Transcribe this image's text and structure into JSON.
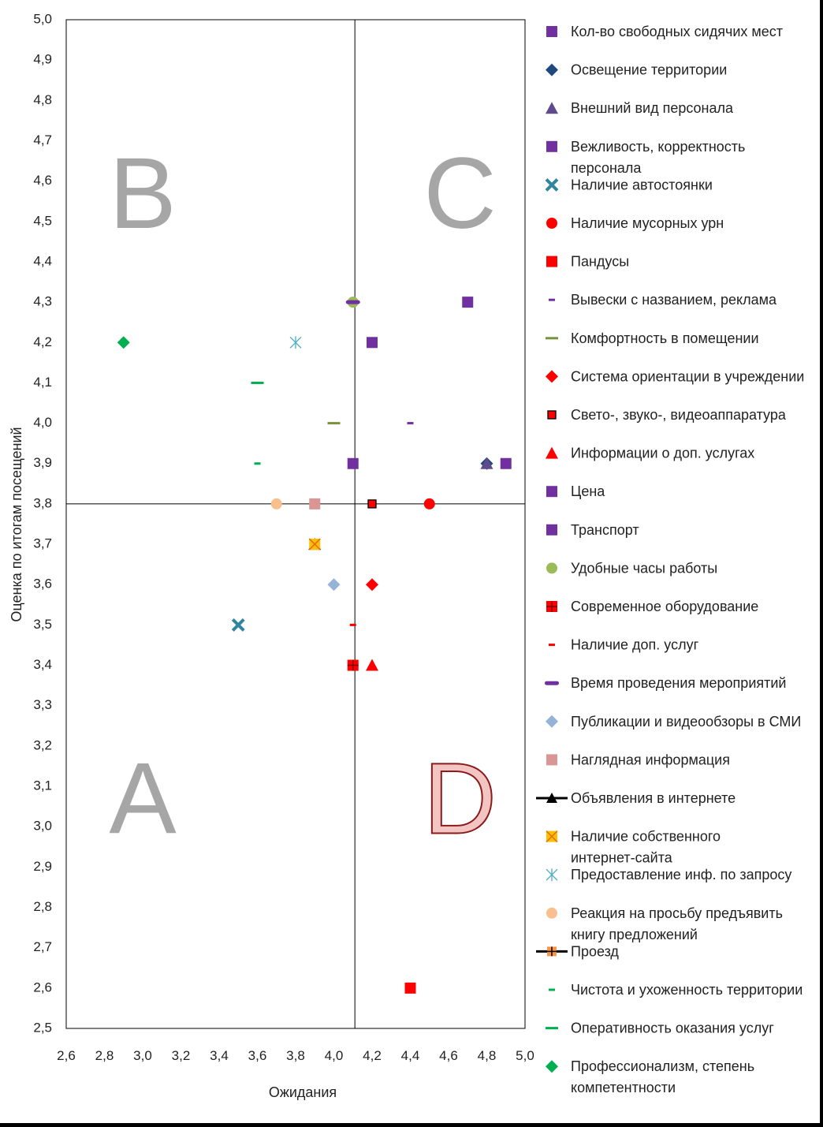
{
  "chart_data": {
    "type": "scatter",
    "xlabel": "Ожидания",
    "ylabel": "Оценка по итогам посещений",
    "xlim": [
      2.6,
      5.0
    ],
    "ylim": [
      2.5,
      5.0
    ],
    "x_ticks": [
      "2,6",
      "2,8",
      "3,0",
      "3,2",
      "3,4",
      "3,6",
      "3,8",
      "4,0",
      "4,2",
      "4,4",
      "4,6",
      "4,8",
      "5,0"
    ],
    "y_ticks": [
      "5,0",
      "4,9",
      "4,8",
      "4,7",
      "4,6",
      "4,5",
      "4,4",
      "4,3",
      "4,2",
      "4,1",
      "4,0",
      "3,9",
      "3,8",
      "3,7",
      "3,6",
      "3,5",
      "3,4",
      "3,3",
      "3,2",
      "3,1",
      "3,0",
      "2,9",
      "2,8",
      "2,7",
      "2,6",
      "2,5"
    ],
    "quadrant_lines": {
      "x": 4.11,
      "y": 3.8
    },
    "quadrants": [
      {
        "label": "B",
        "x": 3.0,
        "y": 4.55,
        "color": "#a6a6a6"
      },
      {
        "label": "C",
        "x": 4.66,
        "y": 4.55,
        "color": "#a6a6a6"
      },
      {
        "label": "A",
        "x": 3.0,
        "y": 3.05,
        "color": "#a6a6a6"
      },
      {
        "label": "D",
        "x": 4.66,
        "y": 3.05,
        "color": "#c0504d"
      }
    ],
    "legend_position": "right",
    "series": [
      {
        "name": "Кол-во свободных сидячих мест",
        "marker": "square",
        "color": "#7030a0",
        "points": [
          [
            4.2,
            4.2
          ]
        ]
      },
      {
        "name": "Освещение территории",
        "marker": "diamond",
        "color": "#1f497d",
        "points": [
          [
            4.8,
            3.9
          ]
        ]
      },
      {
        "name": "Внешний вид персонала",
        "marker": "triangle",
        "color": "#5f4b8b",
        "points": [
          [
            4.8,
            3.9
          ]
        ]
      },
      {
        "name": "Вежливость, корректность персонала",
        "marker": "square",
        "color": "#7030a0",
        "points": [
          [
            4.9,
            3.9
          ]
        ]
      },
      {
        "name": "Наличие автостоянки",
        "marker": "x",
        "color": "#31859c",
        "points": [
          [
            3.5,
            3.5
          ]
        ]
      },
      {
        "name": "Наличие мусорных урн",
        "marker": "circle",
        "color": "#ff0000",
        "points": [
          [
            4.5,
            3.8
          ]
        ]
      },
      {
        "name": "Пандусы",
        "marker": "square",
        "color": "#ff0000",
        "points": [
          [
            4.4,
            2.6
          ]
        ]
      },
      {
        "name": "Вывески с названием, реклама",
        "marker": "dash",
        "color": "#7030a0",
        "points": [
          [
            4.4,
            4.0
          ]
        ]
      },
      {
        "name": "Комфортность в помещении",
        "marker": "longdash",
        "color": "#77933c",
        "points": [
          [
            4.0,
            4.0
          ]
        ]
      },
      {
        "name": "Система ориентации в учреждении",
        "marker": "diamond",
        "color": "#ff0000",
        "points": [
          [
            4.2,
            3.6
          ]
        ]
      },
      {
        "name": "Свето-, звуко-, видеоаппаратура",
        "marker": "square-outline",
        "color": "#ff0000",
        "points": [
          [
            4.2,
            3.8
          ]
        ]
      },
      {
        "name": "Информации о доп. услугах",
        "marker": "triangle",
        "color": "#ff0000",
        "points": [
          [
            4.2,
            3.4
          ]
        ]
      },
      {
        "name": "Цена",
        "marker": "square",
        "color": "#7030a0",
        "points": [
          [
            4.1,
            3.9
          ]
        ]
      },
      {
        "name": "Транспорт",
        "marker": "square",
        "color": "#7030a0",
        "points": [
          [
            4.7,
            4.3
          ]
        ]
      },
      {
        "name": "Удобные часы работы",
        "marker": "circle",
        "color": "#9bbb59",
        "points": [
          [
            4.1,
            4.3
          ]
        ]
      },
      {
        "name": "Современное оборудование",
        "marker": "square-plus",
        "color": "#ff0000",
        "points": [
          [
            4.1,
            3.4
          ]
        ]
      },
      {
        "name": "Наличие доп.  услуг",
        "marker": "dash",
        "color": "#ff0000",
        "points": [
          [
            4.1,
            3.5
          ]
        ]
      },
      {
        "name": "Время проведения мероприятий",
        "marker": "thickdash",
        "color": "#7030a0",
        "points": [
          [
            4.1,
            4.3
          ]
        ]
      },
      {
        "name": "Публикации и видеообзоры в СМИ",
        "marker": "diamond",
        "color": "#95b3d7",
        "points": [
          [
            4.0,
            3.6
          ]
        ]
      },
      {
        "name": "Наглядная информация",
        "marker": "square",
        "color": "#d99694",
        "points": [
          [
            3.9,
            3.8
          ]
        ]
      },
      {
        "name": "Объявления в интернете",
        "marker": "triangle-line",
        "color": "#000000",
        "points": [
          [
            3.9,
            3.7
          ]
        ]
      },
      {
        "name": "Наличие собственного интернет-сайта",
        "marker": "square-x",
        "color": "#ffc000",
        "points": [
          [
            3.9,
            3.7
          ]
        ]
      },
      {
        "name": "Предоставление инф. по запросу",
        "marker": "star",
        "color": "#4bacc6",
        "points": [
          [
            3.8,
            4.2
          ]
        ]
      },
      {
        "name": "Реакция на просьбу предъявить книгу предложений",
        "marker": "circle",
        "color": "#fabf8f",
        "points": [
          [
            3.7,
            3.8
          ]
        ]
      },
      {
        "name": "Проезд",
        "marker": "plus-line",
        "color": "#f79646",
        "points": []
      },
      {
        "name": "Чистота и ухоженность территории",
        "marker": "dash",
        "color": "#00b050",
        "points": [
          [
            3.6,
            3.9
          ]
        ]
      },
      {
        "name": "Оперативность оказания услуг",
        "marker": "longdash",
        "color": "#00b050",
        "points": [
          [
            3.6,
            4.1
          ]
        ]
      },
      {
        "name": "Профессионализм, степень компетентности",
        "marker": "diamond",
        "color": "#00b050",
        "points": [
          [
            2.9,
            4.2
          ]
        ]
      }
    ]
  }
}
